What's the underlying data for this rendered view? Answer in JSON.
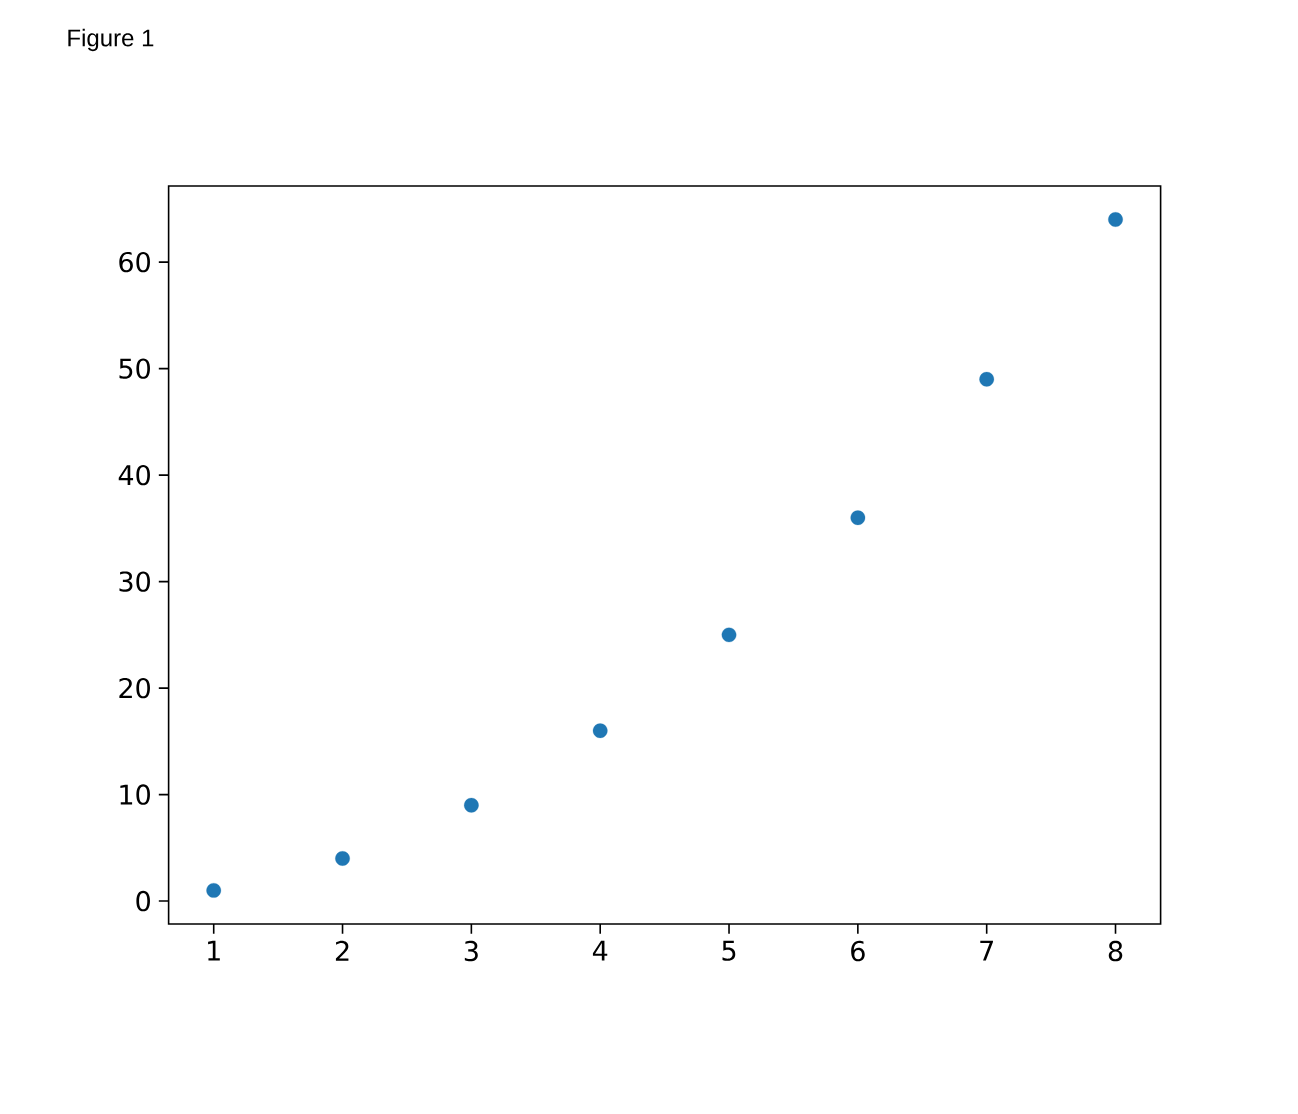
{
  "chart_data": {
    "type": "scatter",
    "annotations": [
      "Figure 1"
    ],
    "x": [
      1,
      2,
      3,
      4,
      5,
      6,
      7,
      8
    ],
    "values": [
      1,
      4,
      9,
      16,
      25,
      36,
      49,
      64
    ],
    "color": "#1f77b4",
    "marker": "circle",
    "xlim": [
      0.65,
      8.35
    ],
    "ylim": [
      -2.15,
      67.15
    ],
    "xticks": [
      1,
      2,
      3,
      4,
      5,
      6,
      7,
      8
    ],
    "yticks": [
      0,
      10,
      20,
      30,
      40,
      50,
      60
    ]
  }
}
